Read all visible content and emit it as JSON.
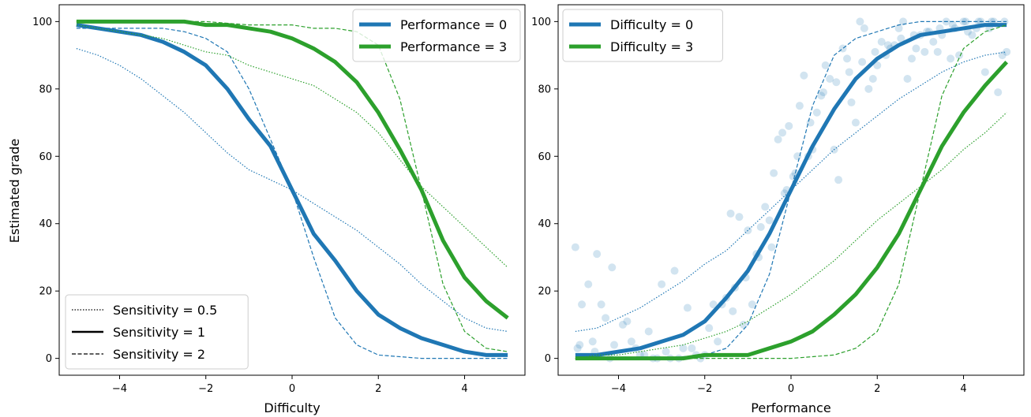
{
  "figure": {
    "ylabel": "Estimated grade"
  },
  "chart_data": [
    {
      "type": "line",
      "xlabel": "Difficulty",
      "ylabel": "Estimated grade",
      "xlim": [
        -5.4,
        5.4
      ],
      "ylim": [
        -5,
        105
      ],
      "xticks": [
        -4,
        -2,
        0,
        2,
        4
      ],
      "yticks": [
        0,
        20,
        40,
        60,
        80,
        100
      ],
      "xtick_labels": [
        "−4",
        "−2",
        "0",
        "2",
        "4"
      ],
      "ytick_labels": [
        "0",
        "20",
        "40",
        "60",
        "80",
        "100"
      ],
      "legends": [
        {
          "placement": "top-right",
          "entries": [
            {
              "label": "Performance = 0",
              "color": "#1f77b4",
              "style": "solid-thick"
            },
            {
              "label": "Performance = 3",
              "color": "#2ca02c",
              "style": "solid-thick"
            }
          ]
        },
        {
          "placement": "bottom-left",
          "entries": [
            {
              "label": "Sensitivity = 0.5",
              "color": "#000000",
              "style": "dotted"
            },
            {
              "label": "Sensitivity = 1",
              "color": "#000000",
              "style": "solid"
            },
            {
              "label": "Sensitivity = 2",
              "color": "#000000",
              "style": "dashed"
            }
          ]
        }
      ],
      "series": [
        {
          "color": "#1f77b4",
          "style": "solid-thick",
          "x": [
            -5,
            -4.5,
            -4,
            -3.5,
            -3,
            -2.5,
            -2,
            -1.5,
            -1,
            -0.5,
            0,
            0.5,
            1,
            1.5,
            2,
            2.5,
            3,
            3.5,
            4,
            4.5,
            5
          ],
          "y": [
            99,
            98,
            97,
            96,
            94,
            91,
            87,
            80,
            71,
            63,
            50,
            37,
            29,
            20,
            13,
            9,
            6,
            4,
            2,
            1,
            1
          ]
        },
        {
          "color": "#1f77b4",
          "style": "dotted",
          "x": [
            -5,
            -4.5,
            -4,
            -3.5,
            -3,
            -2.5,
            -2,
            -1.5,
            -1,
            -0.5,
            0,
            0.5,
            1,
            1.5,
            2,
            2.5,
            3,
            3.5,
            4,
            4.5,
            5
          ],
          "y": [
            92,
            90,
            87,
            83,
            78,
            73,
            67,
            61,
            56,
            53,
            50,
            46,
            42,
            38,
            33,
            28,
            22,
            17,
            12,
            9,
            8
          ]
        },
        {
          "color": "#1f77b4",
          "style": "dashed",
          "x": [
            -5,
            -4,
            -3,
            -2.5,
            -2,
            -1.5,
            -1,
            -0.5,
            0,
            0.5,
            1,
            1.5,
            2,
            2.5,
            3,
            4,
            5
          ],
          "y": [
            98,
            98,
            98,
            97,
            95,
            91,
            80,
            65,
            50,
            30,
            12,
            4,
            1,
            0.5,
            0,
            0,
            0
          ]
        },
        {
          "color": "#2ca02c",
          "style": "solid-thick",
          "x": [
            -5,
            -4.5,
            -4,
            -3.5,
            -3,
            -2.5,
            -2,
            -1.5,
            -1,
            -0.5,
            0,
            0.5,
            1,
            1.5,
            2,
            2.5,
            3,
            3.5,
            4,
            4.5,
            5
          ],
          "y": [
            100,
            100,
            100,
            100,
            100,
            100,
            99,
            99,
            98,
            97,
            95,
            92,
            88,
            82,
            73,
            62,
            50,
            35,
            24,
            17,
            12
          ]
        },
        {
          "color": "#2ca02c",
          "style": "dotted",
          "x": [
            -5,
            -4.5,
            -4,
            -3.5,
            -3,
            -2.5,
            -2,
            -1.5,
            -1,
            -0.5,
            0,
            0.5,
            1,
            1.5,
            2,
            2.5,
            3,
            3.5,
            4,
            4.5,
            5
          ],
          "y": [
            99,
            98,
            97,
            96,
            95,
            93,
            91,
            90,
            87,
            85,
            83,
            81,
            77,
            73,
            67,
            59,
            51,
            45,
            39,
            33,
            27
          ]
        },
        {
          "color": "#2ca02c",
          "style": "dashed",
          "x": [
            -5,
            -4,
            -3,
            -2,
            -1,
            0,
            0.5,
            1,
            1.5,
            2,
            2.5,
            3,
            3.5,
            4,
            4.5,
            5
          ],
          "y": [
            100,
            100,
            100,
            100,
            99,
            99,
            98,
            98,
            97,
            93,
            77,
            50,
            22,
            8,
            3,
            2
          ]
        }
      ]
    },
    {
      "type": "line",
      "xlabel": "Performance",
      "ylabel": "",
      "xlim": [
        -5.4,
        5.4
      ],
      "ylim": [
        -5,
        105
      ],
      "xticks": [
        -4,
        -2,
        0,
        2,
        4
      ],
      "yticks": [
        0,
        20,
        40,
        60,
        80,
        100
      ],
      "xtick_labels": [
        "−4",
        "−2",
        "0",
        "2",
        "4"
      ],
      "ytick_labels": [
        "0",
        "20",
        "40",
        "60",
        "80",
        "100"
      ],
      "legends": [
        {
          "placement": "top-left",
          "entries": [
            {
              "label": "Difficulty = 0",
              "color": "#1f77b4",
              "style": "solid-thick"
            },
            {
              "label": "Difficulty = 3",
              "color": "#2ca02c",
              "style": "solid-thick"
            }
          ]
        }
      ],
      "series": [
        {
          "color": "#1f77b4",
          "style": "solid-thick",
          "x": [
            -5,
            -4.5,
            -4,
            -3.5,
            -3,
            -2.5,
            -2,
            -1.5,
            -1,
            -0.5,
            0,
            0.5,
            1,
            1.5,
            2,
            2.5,
            3,
            3.5,
            4,
            4.5,
            5
          ],
          "y": [
            1,
            1,
            2,
            3,
            5,
            7,
            11,
            18,
            26,
            37,
            50,
            63,
            74,
            83,
            89,
            93,
            96,
            97,
            98,
            99,
            99
          ]
        },
        {
          "color": "#1f77b4",
          "style": "dotted",
          "x": [
            -5,
            -4.5,
            -4,
            -3.5,
            -3,
            -2.5,
            -2,
            -1.5,
            -1,
            -0.5,
            0,
            0.5,
            1,
            1.5,
            2,
            2.5,
            3,
            3.5,
            4,
            4.5,
            5
          ],
          "y": [
            8,
            9,
            12,
            15,
            19,
            23,
            28,
            32,
            38,
            44,
            50,
            56,
            62,
            67,
            72,
            77,
            81,
            85,
            88,
            90,
            91
          ]
        },
        {
          "color": "#1f77b4",
          "style": "dashed",
          "x": [
            -5,
            -4,
            -3,
            -2.5,
            -2,
            -1.5,
            -1,
            -0.5,
            0,
            0.5,
            1,
            1.5,
            2,
            2.5,
            3,
            4,
            5
          ],
          "y": [
            0,
            0,
            0,
            0.5,
            1,
            3,
            10,
            25,
            50,
            75,
            90,
            95,
            97,
            99,
            100,
            100,
            100
          ]
        },
        {
          "color": "#2ca02c",
          "style": "solid-thick",
          "x": [
            -5,
            -4.5,
            -4,
            -3.5,
            -3,
            -2.5,
            -2,
            -1.5,
            -1,
            -0.5,
            0,
            0.5,
            1,
            1.5,
            2,
            2.5,
            3,
            3.5,
            4,
            4.5,
            5
          ],
          "y": [
            0,
            0,
            0,
            0,
            0,
            0,
            1,
            1,
            1,
            3,
            5,
            8,
            13,
            19,
            27,
            37,
            50,
            63,
            73,
            81,
            88
          ]
        },
        {
          "color": "#2ca02c",
          "style": "dotted",
          "x": [
            -5,
            -4.5,
            -4,
            -3.5,
            -3,
            -2.5,
            -2,
            -1.5,
            -1,
            -0.5,
            0,
            0.5,
            1,
            1.5,
            2,
            2.5,
            3,
            3.5,
            4,
            4.5,
            5
          ],
          "y": [
            0,
            1,
            1,
            2,
            3,
            4,
            6,
            8,
            11,
            15,
            19,
            24,
            29,
            35,
            41,
            46,
            51,
            56,
            62,
            67,
            73
          ]
        },
        {
          "color": "#2ca02c",
          "style": "dashed",
          "x": [
            -5,
            -4,
            -3,
            -2,
            -1,
            0,
            0.5,
            1,
            1.5,
            2,
            2.5,
            3,
            3.5,
            4,
            4.5,
            5
          ],
          "y": [
            0,
            0,
            0,
            0,
            0,
            0,
            0.5,
            1,
            3,
            8,
            22,
            50,
            78,
            92,
            97,
            99
          ]
        },
        {
          "type": "scatter",
          "color": "#1f77b4",
          "opacity": 0.2,
          "x": [
            -5.0,
            -4.9,
            -4.7,
            -4.85,
            -4.5,
            -4.6,
            -4.3,
            -4.15,
            -4.4,
            -4.1,
            -3.9,
            -3.8,
            -3.6,
            -3.5,
            -3.3,
            -3.2,
            -3.0,
            -2.8,
            -2.7,
            -2.5,
            -2.4,
            -2.2,
            -2.1,
            -1.9,
            -1.8,
            -1.6,
            -1.5,
            -1.4,
            -1.3,
            -1.2,
            -1.1,
            -1.0,
            -0.9,
            -0.8,
            -0.7,
            -0.6,
            -0.5,
            -0.4,
            -0.3,
            -0.2,
            -0.1,
            -0.05,
            0.05,
            0.1,
            0.2,
            0.3,
            0.4,
            0.5,
            0.6,
            0.7,
            0.8,
            0.9,
            1.0,
            1.1,
            1.2,
            1.3,
            1.4,
            1.5,
            1.6,
            1.7,
            1.8,
            1.9,
            2.0,
            2.1,
            2.2,
            2.3,
            2.4,
            2.5,
            2.6,
            2.7,
            2.8,
            2.9,
            3.0,
            3.1,
            3.2,
            3.3,
            3.4,
            3.5,
            3.6,
            3.7,
            3.8,
            3.9,
            4.0,
            4.1,
            4.2,
            4.3,
            4.4,
            4.5,
            4.6,
            4.7,
            4.8,
            4.9,
            5.0,
            -4.95,
            -4.55,
            -4.2,
            -3.7,
            -3.4,
            -3.1,
            -2.9,
            -2.6,
            -2.3,
            -2.0,
            -1.7,
            -1.35,
            -1.05,
            -0.75,
            -0.45,
            -0.15,
            0.15,
            0.45,
            0.75,
            1.05,
            1.35,
            1.65,
            1.95,
            2.25,
            2.55,
            2.85,
            3.15,
            3.45,
            3.75,
            4.05,
            4.35,
            4.65,
            4.95
          ],
          "y": [
            33,
            4,
            22,
            16,
            31,
            5,
            12,
            27,
            16,
            4,
            10,
            11,
            3,
            1,
            8,
            0,
            22,
            0,
            26,
            3,
            15,
            1,
            0,
            9,
            16,
            16,
            18,
            43,
            21,
            42,
            10,
            38,
            16,
            31,
            39,
            45,
            41,
            55,
            65,
            67,
            50,
            69,
            54,
            55,
            75,
            84,
            60,
            62,
            73,
            78,
            87,
            83,
            62,
            53,
            92,
            89,
            76,
            70,
            100,
            98,
            80,
            83,
            87,
            94,
            90,
            92,
            93,
            98,
            100,
            83,
            89,
            92,
            96,
            91,
            97,
            94,
            91,
            96,
            100,
            89,
            98,
            90,
            100,
            97,
            96,
            98,
            100,
            85,
            98,
            100,
            79,
            90,
            91,
            3,
            2,
            0,
            5,
            1,
            0,
            2,
            0,
            3,
            1,
            5,
            14,
            24,
            30,
            33,
            49,
            60,
            70,
            79,
            82,
            85,
            88,
            91,
            93,
            95,
            96,
            97,
            98,
            99,
            100,
            100,
            100,
            100
          ]
        }
      ]
    }
  ]
}
